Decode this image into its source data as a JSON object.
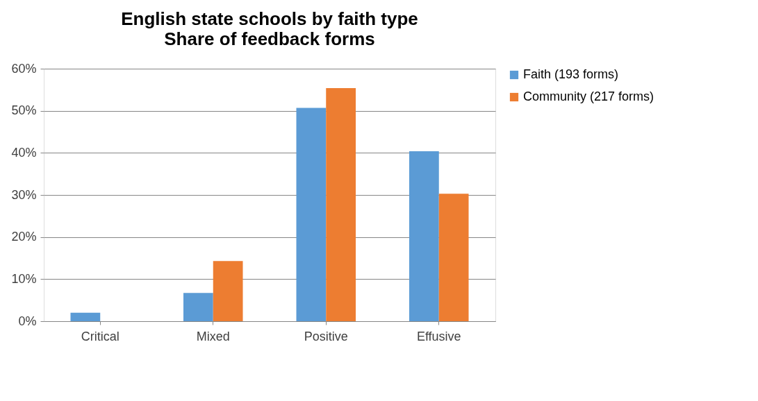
{
  "chart_data": {
    "type": "bar",
    "title": "English state schools by faith type",
    "subtitle": "Share of feedback forms",
    "categories": [
      "Critical",
      "Mixed",
      "Positive",
      "Effusive"
    ],
    "series": [
      {
        "name": "Faith (193 forms)",
        "color": "#5b9bd5",
        "values": [
          2.0,
          6.7,
          50.7,
          40.4
        ]
      },
      {
        "name": "Community (217 forms)",
        "color": "#ed7d31",
        "values": [
          0,
          14.3,
          55.4,
          30.3
        ]
      }
    ],
    "ylim": [
      0,
      60
    ],
    "yticks": [
      {
        "value": 0,
        "label": "0%"
      },
      {
        "value": 10,
        "label": "10%"
      },
      {
        "value": 20,
        "label": "20%"
      },
      {
        "value": 30,
        "label": "30%"
      },
      {
        "value": 40,
        "label": "40%"
      },
      {
        "value": 50,
        "label": "50%"
      },
      {
        "value": 60,
        "label": "60%"
      }
    ],
    "grid": "y",
    "legend": "right"
  }
}
